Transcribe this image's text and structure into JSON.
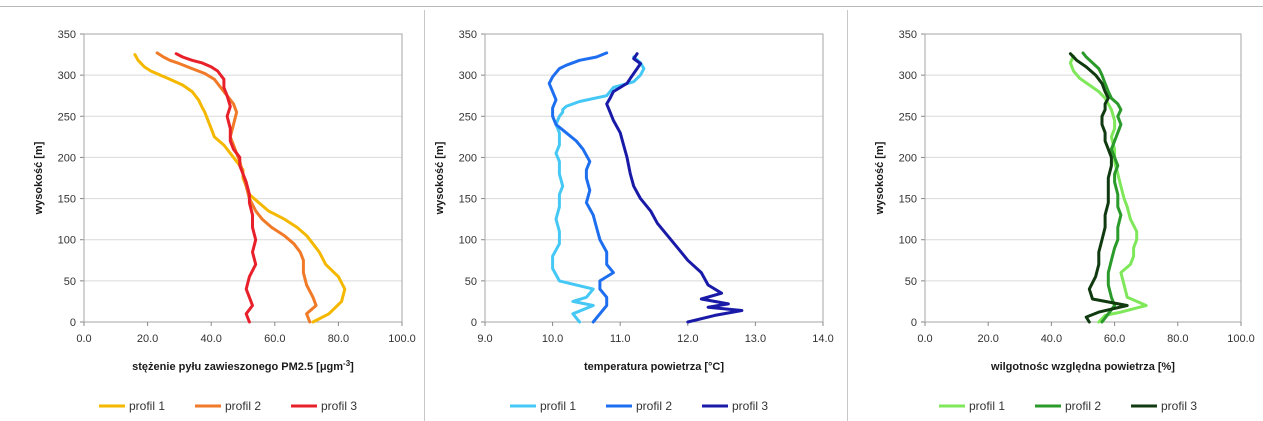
{
  "charts": [
    {
      "type": "line",
      "xlabel": "stężenie pyłu zawieszonego PM2.5 [μgm",
      "xlabel_sup": "-3",
      "xlabel_end": "]",
      "ylabel": "wysokość [m]",
      "xlim": [
        0,
        100
      ],
      "ylim": [
        0,
        350
      ],
      "xticks": [
        "0.0",
        "20.0",
        "40.0",
        "60.0",
        "80.0",
        "100.0"
      ],
      "yticks": [
        "0",
        "50",
        "100",
        "150",
        "200",
        "250",
        "300",
        "350"
      ],
      "series": [
        {
          "name": "profil 1",
          "color": "#f5b800",
          "x": [
            72,
            77,
            81,
            82,
            80,
            76,
            74,
            72,
            70,
            67,
            63,
            58,
            55,
            52,
            51,
            50,
            50,
            48,
            46,
            44,
            41,
            40,
            39,
            38,
            37,
            36,
            34,
            31,
            27,
            24,
            21,
            19,
            17,
            16
          ],
          "y": [
            0,
            10,
            25,
            40,
            55,
            70,
            85,
            95,
            105,
            115,
            125,
            135,
            145,
            155,
            165,
            175,
            185,
            195,
            205,
            215,
            225,
            235,
            245,
            255,
            262,
            270,
            280,
            288,
            295,
            300,
            305,
            310,
            318,
            325
          ]
        },
        {
          "name": "profil 2",
          "color": "#f07a28",
          "x": [
            71,
            70,
            73,
            72,
            70,
            69,
            69,
            68,
            66,
            63,
            59,
            56,
            54,
            52,
            51,
            50,
            49,
            48,
            47,
            46,
            47,
            48,
            47,
            45,
            43,
            41,
            38,
            34,
            30,
            27,
            25,
            23
          ],
          "y": [
            0,
            10,
            20,
            30,
            45,
            60,
            75,
            85,
            95,
            105,
            115,
            125,
            135,
            150,
            165,
            180,
            195,
            205,
            215,
            225,
            240,
            255,
            265,
            275,
            285,
            295,
            302,
            308,
            314,
            318,
            322,
            327
          ]
        },
        {
          "name": "profil 3",
          "color": "#e8202a",
          "x": [
            52,
            51,
            53,
            52,
            51,
            52,
            54,
            53,
            54,
            53,
            53,
            52,
            52,
            51,
            50,
            49,
            49,
            47,
            46,
            46,
            45,
            46,
            45,
            44,
            44,
            43,
            42,
            40,
            37,
            34,
            31,
            29
          ],
          "y": [
            0,
            10,
            20,
            30,
            40,
            55,
            70,
            85,
            100,
            115,
            130,
            145,
            155,
            170,
            180,
            190,
            200,
            210,
            220,
            235,
            250,
            262,
            275,
            285,
            295,
            300,
            305,
            310,
            315,
            318,
            322,
            326
          ]
        }
      ]
    },
    {
      "type": "line",
      "xlabel": "temperatura powietrza [°C]",
      "xlabel_sup": "",
      "xlabel_end": "",
      "ylabel": "wysokość [m]",
      "xlim": [
        9,
        14
      ],
      "ylim": [
        0,
        350
      ],
      "xticks": [
        "9.0",
        "10.0",
        "11.0",
        "12.0",
        "13.0",
        "14.0"
      ],
      "yticks": [
        "0",
        "50",
        "100",
        "150",
        "200",
        "250",
        "300",
        "350"
      ],
      "series": [
        {
          "name": "profil 1",
          "color": "#45c8f5",
          "x": [
            10.4,
            10.3,
            10.6,
            10.3,
            10.5,
            10.6,
            10.1,
            10.0,
            10.0,
            10.1,
            10.1,
            10.05,
            10.1,
            10.1,
            10.15,
            10.1,
            10.1,
            10.05,
            10.1,
            10.1,
            10.05,
            10.1,
            10.15,
            10.15,
            10.2,
            10.4,
            10.8,
            10.9,
            11.2,
            11.3,
            11.35,
            11.3,
            11.2
          ],
          "y": [
            0,
            10,
            20,
            25,
            30,
            40,
            50,
            65,
            80,
            95,
            110,
            125,
            140,
            155,
            165,
            180,
            195,
            205,
            215,
            230,
            240,
            250,
            255,
            258,
            262,
            268,
            275,
            285,
            292,
            300,
            308,
            315,
            322
          ]
        },
        {
          "name": "profil 2",
          "color": "#1e6ff0",
          "x": [
            10.6,
            10.7,
            10.8,
            10.8,
            10.7,
            10.7,
            10.9,
            10.8,
            10.8,
            10.7,
            10.65,
            10.6,
            10.5,
            10.55,
            10.5,
            10.5,
            10.55,
            10.45,
            10.35,
            10.2,
            10.05,
            10.0,
            10.0,
            10.05,
            10.0,
            9.95,
            10.0,
            10.05,
            10.1,
            10.2,
            10.4,
            10.65,
            10.8
          ],
          "y": [
            0,
            10,
            20,
            30,
            40,
            50,
            60,
            70,
            85,
            100,
            115,
            130,
            145,
            160,
            175,
            185,
            195,
            210,
            220,
            230,
            240,
            250,
            260,
            270,
            280,
            290,
            298,
            303,
            308,
            312,
            318,
            322,
            327
          ]
        },
        {
          "name": "profil 3",
          "color": "#1a1aa8",
          "x": [
            12.0,
            12.4,
            12.8,
            12.3,
            12.6,
            12.2,
            12.5,
            12.3,
            12.2,
            12.0,
            11.85,
            11.7,
            11.55,
            11.45,
            11.3,
            11.2,
            11.15,
            11.1,
            11.05,
            11.0,
            10.9,
            10.85,
            10.8,
            10.85,
            10.9,
            11.0,
            11.1,
            11.15,
            11.2,
            11.25,
            11.3,
            11.2,
            11.25
          ],
          "y": [
            0,
            8,
            14,
            18,
            22,
            28,
            35,
            45,
            60,
            75,
            90,
            105,
            120,
            135,
            150,
            165,
            180,
            200,
            215,
            230,
            245,
            255,
            265,
            272,
            280,
            285,
            290,
            296,
            302,
            308,
            314,
            320,
            326
          ]
        }
      ]
    },
    {
      "type": "line",
      "xlabel": "wilgotnośc względna powietrza [%]",
      "xlabel_sup": "",
      "xlabel_end": "",
      "ylabel": "wysokość [m]",
      "xlim": [
        0,
        100
      ],
      "ylim": [
        0,
        350
      ],
      "xticks": [
        "0.0",
        "20.0",
        "40.0",
        "60.0",
        "80.0",
        "100.0"
      ],
      "yticks": [
        "0",
        "50",
        "100",
        "150",
        "200",
        "250",
        "300",
        "350"
      ],
      "series": [
        {
          "name": "profil 1",
          "color": "#7ee85a",
          "x": [
            55,
            57,
            62,
            70,
            64,
            63,
            62,
            65,
            66,
            66,
            67,
            67,
            65,
            64,
            63,
            62,
            61,
            60,
            60,
            59,
            60,
            60,
            59,
            58,
            57,
            55,
            52,
            49,
            47,
            46,
            47
          ],
          "y": [
            0,
            8,
            12,
            20,
            30,
            45,
            60,
            70,
            80,
            90,
            100,
            110,
            125,
            140,
            150,
            165,
            180,
            195,
            210,
            225,
            235,
            245,
            258,
            265,
            272,
            280,
            288,
            296,
            305,
            315,
            323
          ]
        },
        {
          "name": "profil 2",
          "color": "#2a9a2a",
          "x": [
            56,
            58,
            60,
            59,
            58,
            58,
            59,
            60,
            61,
            61,
            62,
            61,
            61,
            60,
            60,
            61,
            60,
            59,
            60,
            61,
            62,
            61,
            62,
            61,
            59,
            58,
            57,
            56,
            55,
            53,
            51,
            50
          ],
          "y": [
            0,
            10,
            20,
            30,
            45,
            60,
            75,
            90,
            100,
            115,
            130,
            140,
            155,
            170,
            180,
            190,
            200,
            210,
            220,
            230,
            240,
            250,
            258,
            265,
            272,
            280,
            290,
            300,
            308,
            315,
            322,
            327
          ]
        },
        {
          "name": "profil 3",
          "color": "#103a10",
          "x": [
            52,
            51,
            55,
            64,
            53,
            52,
            54,
            55,
            55,
            56,
            57,
            57,
            58,
            58,
            58,
            59,
            59,
            58,
            57,
            57,
            56,
            56,
            57,
            57,
            58,
            57,
            56,
            54,
            51,
            48,
            46
          ],
          "y": [
            0,
            6,
            12,
            20,
            28,
            40,
            55,
            70,
            85,
            100,
            115,
            130,
            145,
            160,
            175,
            190,
            200,
            210,
            220,
            230,
            240,
            250,
            258,
            265,
            272,
            280,
            290,
            300,
            310,
            318,
            326
          ]
        }
      ]
    }
  ]
}
